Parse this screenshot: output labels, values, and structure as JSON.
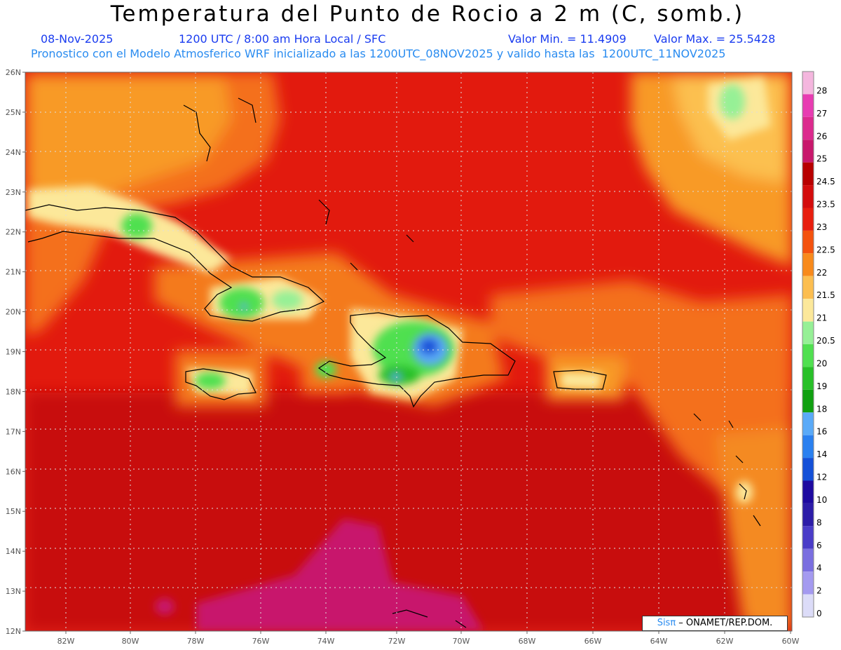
{
  "header": {
    "title": "Temperatura del Punto de Rocio a 2 m (C, somb.)",
    "date": "08-Nov-2025",
    "time_info": "1200 UTC / 8:00 am Hora Local / SFC",
    "min_label": "Valor Min. = 11.4909",
    "max_label": "Valor Max. = 25.5428",
    "forecast_info": "Pronostico con el Modelo Atmosferico WRF inicializado a las 1200UTC_08NOV2025 y valido hasta las  1200UTC_11NOV2025"
  },
  "credit": {
    "brand": "Sisπ",
    "org": " – ONAMET/REP.DOM."
  },
  "axes": {
    "lat_labels": [
      "26N",
      "25N",
      "24N",
      "23N",
      "22N",
      "21N",
      "20N",
      "19N",
      "18N",
      "17N",
      "16N",
      "15N",
      "14N",
      "13N",
      "12N"
    ],
    "lon_labels": [
      "82W",
      "80W",
      "78W",
      "76W",
      "74W",
      "72W",
      "70W",
      "68W",
      "66W",
      "64W",
      "62W",
      "60W"
    ]
  },
  "colorbar": {
    "labels": [
      "28",
      "27",
      "26",
      "25",
      "24.5",
      "23.5",
      "23",
      "22.5",
      "22",
      "21.5",
      "21",
      "20.5",
      "20",
      "19",
      "18",
      "16",
      "14",
      "12",
      "10",
      "8",
      "6",
      "4",
      "2",
      "0"
    ],
    "colors": [
      "#f4b6de",
      "#e83cb2",
      "#dc2a8e",
      "#c8186c",
      "#b80000",
      "#d40c0c",
      "#e81e0e",
      "#f4520e",
      "#f88a1c",
      "#fcbe50",
      "#fce89a",
      "#96f096",
      "#50e050",
      "#28c028",
      "#10a010",
      "#5aaaf8",
      "#2a80f0",
      "#1450d8",
      "#1e0aa0",
      "#2c1ca8",
      "#4a3cc8",
      "#7a6ee0",
      "#a49af0",
      "#dcdcf8"
    ]
  },
  "map": {
    "background_color": "#d40c0c",
    "south_color": "#c40808",
    "grid_color": "#dddddd"
  }
}
